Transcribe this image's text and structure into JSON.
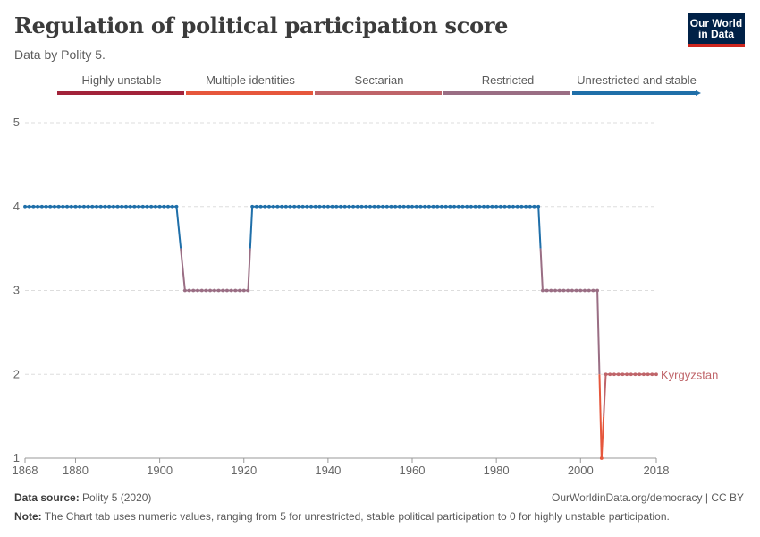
{
  "header": {
    "title": "Regulation of political participation score",
    "subtitle": "Data by Polity 5.",
    "logo_line1": "Our World",
    "logo_line2": "in Data"
  },
  "footer": {
    "source_label": "Data source:",
    "source_value": "Polity 5 (2020)",
    "url": "OurWorldinData.org/democracy | CC BY",
    "note_label": "Note:",
    "note_text": "The Chart tab uses numeric values, ranging from 5 for unrestricted, stable political participation to 0 for highly unstable participation."
  },
  "colors": {
    "highly_unstable": "#a2233a",
    "multiple_identities": "#e6573c",
    "sectarian": "#bf6469",
    "restricted": "#9a6e84",
    "unrestricted_stable": "#1f6fa9",
    "grid": "#dddddd",
    "axis_text": "#666666"
  },
  "chart_data": {
    "type": "line",
    "title": "Regulation of political participation score",
    "xlim": [
      1868,
      2018
    ],
    "ylim": [
      1,
      5
    ],
    "x_ticks": [
      1868,
      1880,
      1900,
      1920,
      1940,
      1960,
      1980,
      2000,
      2018
    ],
    "y_ticks": [
      1,
      2,
      3,
      4,
      5
    ],
    "grid": "horizontal dashed",
    "legend_position": "top",
    "legend": [
      {
        "label": "Highly unstable",
        "color": "#a2233a"
      },
      {
        "label": "Multiple identities",
        "color": "#e6573c"
      },
      {
        "label": "Sectarian",
        "color": "#bf6469"
      },
      {
        "label": "Restricted",
        "color": "#9a6e84"
      },
      {
        "label": "Unrestricted and stable",
        "color": "#1f6fa9"
      }
    ],
    "series": [
      {
        "name": "Kyrgyzstan",
        "segments": [
          {
            "from": 1868,
            "to": 1904,
            "value": 4
          },
          {
            "from": 1906,
            "to": 1921,
            "value": 3
          },
          {
            "from": 1922,
            "to": 1990,
            "value": 4
          },
          {
            "from": 1991,
            "to": 2004,
            "value": 3
          },
          {
            "from": 2005,
            "to": 2005,
            "value": 1
          },
          {
            "from": 2006,
            "to": 2018,
            "value": 2
          }
        ]
      }
    ]
  }
}
